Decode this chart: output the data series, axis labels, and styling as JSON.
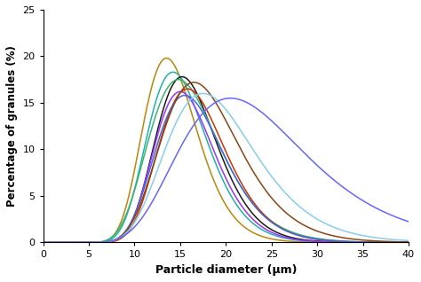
{
  "title": "",
  "xlabel": "Particle diameter (μm)",
  "ylabel": "Percentage of granules (%)",
  "xlim": [
    0,
    40
  ],
  "ylim": [
    0,
    25
  ],
  "xticks": [
    0,
    5,
    10,
    15,
    20,
    25,
    30,
    35,
    40
  ],
  "yticks": [
    0,
    5,
    10,
    15,
    20,
    25
  ],
  "curves": [
    {
      "color": "#B8860B",
      "peak_x": 13.5,
      "peak_y": 19.8,
      "sigma": 0.22
    },
    {
      "color": "#20B2AA",
      "peak_x": 14.2,
      "peak_y": 18.3,
      "sigma": 0.23
    },
    {
      "color": "#1a1a1a",
      "peak_x": 15.2,
      "peak_y": 17.8,
      "sigma": 0.22
    },
    {
      "color": "#3CB371",
      "peak_x": 14.8,
      "peak_y": 17.5,
      "sigma": 0.26
    },
    {
      "color": "#9B30FF",
      "peak_x": 15.0,
      "peak_y": 16.2,
      "sigma": 0.22
    },
    {
      "color": "#CC3300",
      "peak_x": 15.8,
      "peak_y": 16.5,
      "sigma": 0.23
    },
    {
      "color": "#4169E1",
      "peak_x": 15.5,
      "peak_y": 15.8,
      "sigma": 0.24
    },
    {
      "color": "#8B4513",
      "peak_x": 16.5,
      "peak_y": 17.2,
      "sigma": 0.26
    },
    {
      "color": "#87CEEB",
      "peak_x": 17.5,
      "peak_y": 16.0,
      "sigma": 0.28
    },
    {
      "color": "#6666FF",
      "peak_x": 20.5,
      "peak_y": 15.5,
      "sigma": 0.34
    }
  ],
  "background_color": "#ffffff",
  "linewidth": 1.1
}
